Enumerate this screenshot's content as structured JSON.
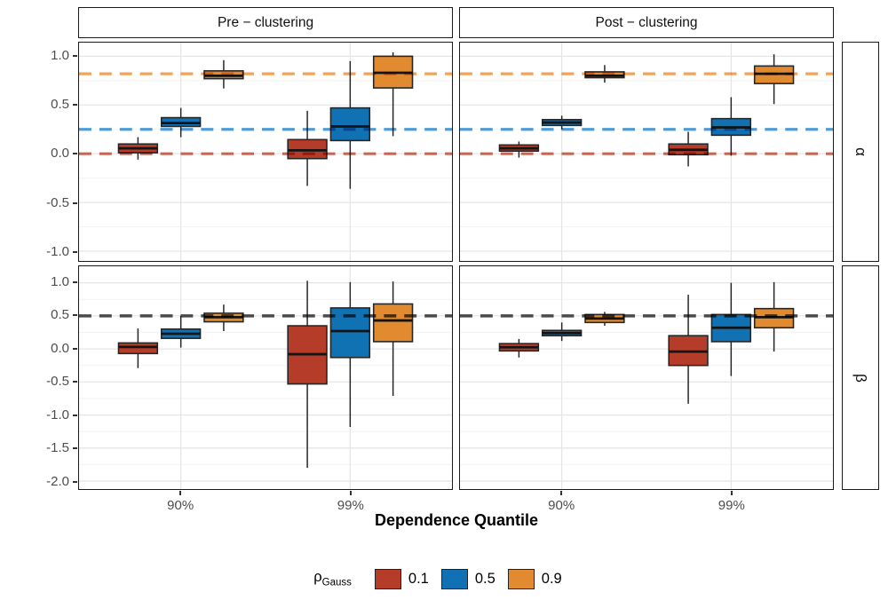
{
  "figure": {
    "col_facets": [
      "Pre − clustering",
      "Post − clustering"
    ],
    "row_facets": [
      "α",
      "β"
    ],
    "xlabel": "Dependence Quantile",
    "x_ticks": [
      "90%",
      "99%"
    ],
    "legend": {
      "title_main": "ρ",
      "title_sub": "Gauss",
      "items": [
        {
          "label": "0.1",
          "color": "#b53c28"
        },
        {
          "label": "0.5",
          "color": "#1072b2"
        },
        {
          "label": "0.9",
          "color": "#e18a2f"
        }
      ]
    }
  },
  "chart_data": {
    "type": "boxplot",
    "title": "",
    "xlabel": "Dependence Quantile",
    "x_categories": [
      "90%",
      "99%"
    ],
    "series": [
      {
        "label": "0.1",
        "color": "#b53c28"
      },
      {
        "label": "0.5",
        "color": "#1072b2"
      },
      {
        "label": "0.9",
        "color": "#e18a2f"
      }
    ],
    "legend_title": "ρGauss",
    "legend_position": "bottom",
    "grid": true,
    "rows": [
      {
        "facet": "α",
        "ylim": [
          -1.1,
          1.14
        ],
        "yticks": [
          "1.0",
          "0.5",
          "0.0",
          "-0.5",
          "-1.0"
        ],
        "ytick_values": [
          1.0,
          0.5,
          0.0,
          -0.5,
          -1.0
        ],
        "minor_gridlines": [
          0.75,
          0.25,
          -0.25,
          -0.75
        ],
        "ref_lines": [
          {
            "y": 0.82,
            "color": "#efa35d",
            "width": 3.2
          },
          {
            "y": 0.25,
            "color": "#539ed6",
            "width": 3.2
          },
          {
            "y": 0.0,
            "color": "#d06f5d",
            "width": 3.2
          }
        ],
        "panels": [
          {
            "col": "Pre − clustering",
            "boxes": [
              {
                "x": "90%",
                "rho": "0.1",
                "low": -0.06,
                "q1": 0.01,
                "median": 0.055,
                "q3": 0.1,
                "high": 0.17
              },
              {
                "x": "90%",
                "rho": "0.5",
                "low": 0.17,
                "q1": 0.28,
                "median": 0.315,
                "q3": 0.37,
                "high": 0.47
              },
              {
                "x": "90%",
                "rho": "0.9",
                "low": 0.67,
                "q1": 0.77,
                "median": 0.8,
                "q3": 0.85,
                "high": 0.96
              },
              {
                "x": "99%",
                "rho": "0.1",
                "low": -0.33,
                "q1": -0.05,
                "median": 0.035,
                "q3": 0.145,
                "high": 0.44
              },
              {
                "x": "99%",
                "rho": "0.5",
                "low": -0.36,
                "q1": 0.135,
                "median": 0.28,
                "q3": 0.47,
                "high": 0.95
              },
              {
                "x": "99%",
                "rho": "0.9",
                "low": 0.18,
                "q1": 0.675,
                "median": 0.83,
                "q3": 1.0,
                "high": 1.04
              }
            ]
          },
          {
            "col": "Post − clustering",
            "boxes": [
              {
                "x": "90%",
                "rho": "0.1",
                "low": -0.04,
                "q1": 0.027,
                "median": 0.055,
                "q3": 0.09,
                "high": 0.125
              },
              {
                "x": "90%",
                "rho": "0.5",
                "low": 0.25,
                "q1": 0.29,
                "median": 0.32,
                "q3": 0.35,
                "high": 0.39
              },
              {
                "x": "90%",
                "rho": "0.9",
                "low": 0.73,
                "q1": 0.78,
                "median": 0.8,
                "q3": 0.84,
                "high": 0.91
              },
              {
                "x": "99%",
                "rho": "0.1",
                "low": -0.13,
                "q1": -0.01,
                "median": 0.04,
                "q3": 0.1,
                "high": 0.225
              },
              {
                "x": "99%",
                "rho": "0.5",
                "low": -0.02,
                "q1": 0.19,
                "median": 0.27,
                "q3": 0.36,
                "high": 0.58
              },
              {
                "x": "99%",
                "rho": "0.9",
                "low": 0.51,
                "q1": 0.72,
                "median": 0.82,
                "q3": 0.9,
                "high": 1.02
              }
            ]
          }
        ]
      },
      {
        "facet": "β",
        "ylim": [
          -2.12,
          1.25
        ],
        "yticks": [
          "1.0",
          "0.5",
          "0.0",
          "-0.5",
          "-1.0",
          "-1.5",
          "-2.0"
        ],
        "ytick_values": [
          1.0,
          0.5,
          0.0,
          -0.5,
          -1.0,
          -1.5,
          -2.0
        ],
        "minor_gridlines": [
          0.75,
          0.25,
          -0.25,
          -0.75,
          -1.25,
          -1.75
        ],
        "ref_lines": [
          {
            "y": 0.5,
            "color": "#4f4f4f",
            "width": 3.6
          }
        ],
        "panels": [
          {
            "col": "Pre − clustering",
            "boxes": [
              {
                "x": "90%",
                "rho": "0.1",
                "low": -0.29,
                "q1": -0.07,
                "median": 0.03,
                "q3": 0.09,
                "high": 0.31
              },
              {
                "x": "90%",
                "rho": "0.5",
                "low": 0.02,
                "q1": 0.16,
                "median": 0.23,
                "q3": 0.3,
                "high": 0.5
              },
              {
                "x": "90%",
                "rho": "0.9",
                "low": 0.27,
                "q1": 0.41,
                "median": 0.48,
                "q3": 0.54,
                "high": 0.67
              },
              {
                "x": "99%",
                "rho": "0.1",
                "low": -1.8,
                "q1": -0.53,
                "median": -0.08,
                "q3": 0.35,
                "high": 1.03
              },
              {
                "x": "99%",
                "rho": "0.5",
                "low": -1.18,
                "q1": -0.13,
                "median": 0.27,
                "q3": 0.62,
                "high": 1.01
              },
              {
                "x": "99%",
                "rho": "0.9",
                "low": -0.71,
                "q1": 0.11,
                "median": 0.43,
                "q3": 0.68,
                "high": 1.02
              }
            ]
          },
          {
            "col": "Post − clustering",
            "boxes": [
              {
                "x": "90%",
                "rho": "0.1",
                "low": -0.13,
                "q1": -0.03,
                "median": 0.025,
                "q3": 0.08,
                "high": 0.15
              },
              {
                "x": "90%",
                "rho": "0.5",
                "low": 0.12,
                "q1": 0.2,
                "median": 0.24,
                "q3": 0.28,
                "high": 0.4
              },
              {
                "x": "90%",
                "rho": "0.9",
                "low": 0.35,
                "q1": 0.4,
                "median": 0.46,
                "q3": 0.52,
                "high": 0.56
              },
              {
                "x": "99%",
                "rho": "0.1",
                "low": -0.83,
                "q1": -0.25,
                "median": -0.04,
                "q3": 0.2,
                "high": 0.82
              },
              {
                "x": "99%",
                "rho": "0.5",
                "low": -0.41,
                "q1": 0.11,
                "median": 0.32,
                "q3": 0.52,
                "high": 1.0
              },
              {
                "x": "99%",
                "rho": "0.9",
                "low": -0.04,
                "q1": 0.32,
                "median": 0.48,
                "q3": 0.61,
                "high": 1.01
              }
            ]
          }
        ]
      }
    ]
  }
}
